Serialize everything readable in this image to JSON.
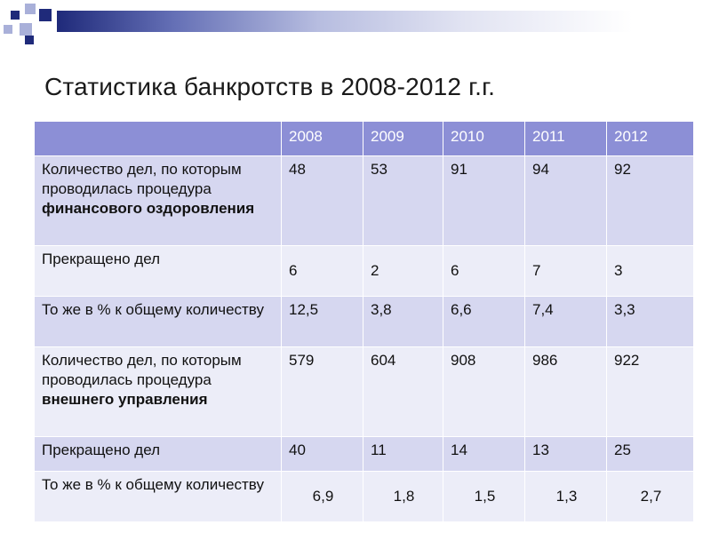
{
  "title": "Статистика банкротств в 2008-2012 г.г.",
  "table": {
    "header": [
      "",
      "2008",
      "2009",
      "2010",
      "2011",
      "2012"
    ],
    "rows": [
      {
        "label": "Количество дел, по которым проводилась процедура",
        "label_bold": "финансового оздоровления",
        "values": [
          "48",
          "53",
          "91",
          "94",
          "92"
        ]
      },
      {
        "label": "Прекращено дел",
        "label_bold": "",
        "values": [
          "6",
          "2",
          "6",
          "7",
          "3"
        ]
      },
      {
        "label": "То же в % к общему количеству",
        "label_bold": "",
        "values": [
          "12,5",
          "3,8",
          "6,6",
          "7,4",
          "3,3"
        ]
      },
      {
        "label": "Количество дел, по которым проводилась процедура",
        "label_bold": "внешнего управления",
        "values": [
          "579",
          "604",
          "908",
          "986",
          "922"
        ]
      },
      {
        "label": "Прекращено дел",
        "label_bold": "",
        "values": [
          "40",
          "11",
          "14",
          "13",
          "25"
        ]
      },
      {
        "label": "То же в % к общему количеству",
        "label_bold": "",
        "values": [
          "6,9",
          "1,8",
          "1,5",
          "1,3",
          "2,7"
        ]
      }
    ]
  },
  "colors": {
    "header_bg": "#8c8fd6",
    "row_dark": "#d6d7f0",
    "row_light": "#ecedf8",
    "accent_dark": "#1f2a7a"
  }
}
